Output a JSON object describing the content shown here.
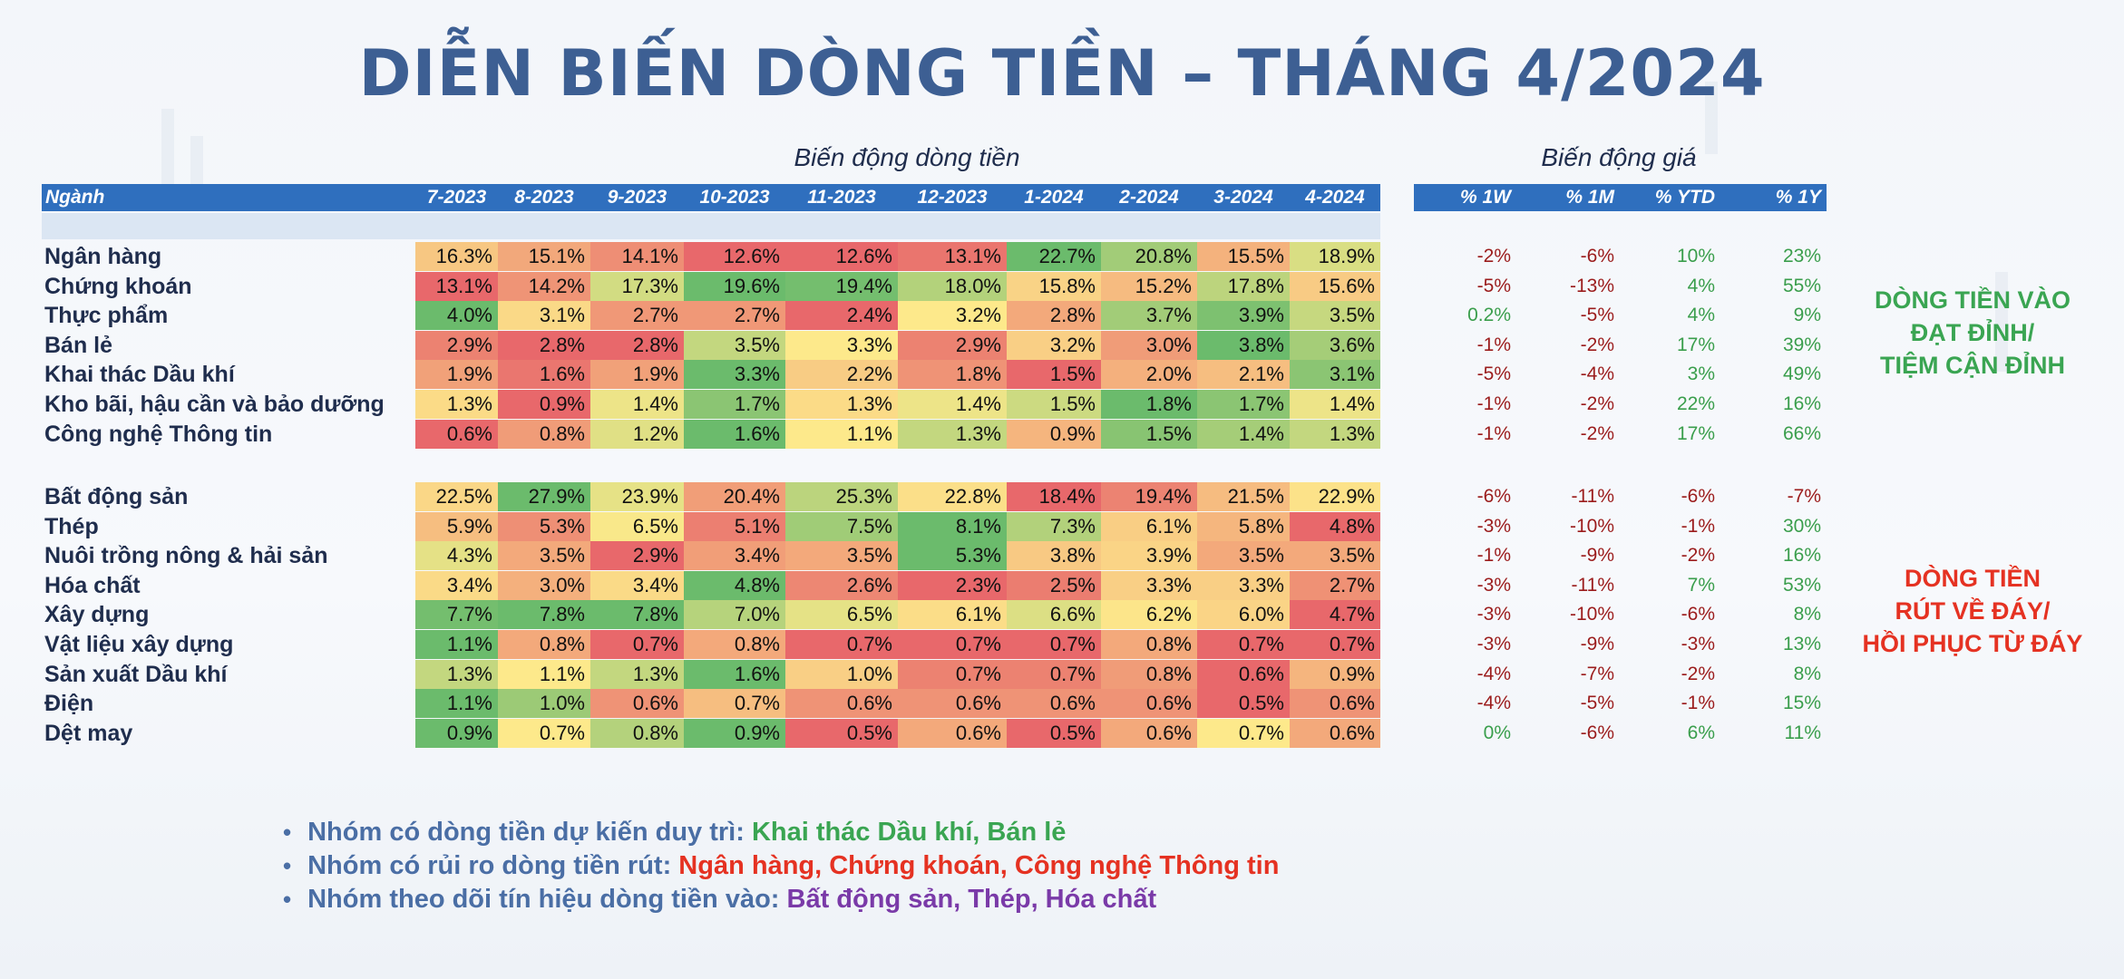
{
  "title": "DIỄN BIẾN DÒNG TIỀN – THÁNG 4/2024",
  "colors": {
    "title": "#3d5f93",
    "header_bg": "#2f6fbe",
    "heat_low": "#e8686b",
    "heat_mid": "#fde98b",
    "heat_high": "#6bbb6c",
    "green_text": "#3aa552",
    "red_text": "#e53222",
    "purple_text": "#7a3aa8",
    "bullet_lead": "#4a6ea5"
  },
  "chart_data": {
    "type": "table",
    "flow_group_label": "Biến động dòng tiền",
    "price_group_label": "Biến động giá",
    "sector_header": "Ngành",
    "months": [
      "7-2023",
      "8-2023",
      "9-2023",
      "10-2023",
      "11-2023",
      "12-2023",
      "1-2024",
      "2-2024",
      "3-2024",
      "4-2024"
    ],
    "price_headers": [
      "% 1W",
      "% 1M",
      "% YTD",
      "% 1Y"
    ],
    "groups": [
      {
        "note": [
          "DÒNG TIỀN VÀO",
          "ĐẠT ĐỈNH/",
          "TIỆM CẬN ĐỈNH"
        ],
        "note_color": "green",
        "rows": [
          {
            "sector": "Ngân hàng",
            "flow": [
              "16.3%",
              "15.1%",
              "14.1%",
              "12.6%",
              "12.6%",
              "13.1%",
              "22.7%",
              "20.8%",
              "15.5%",
              "18.9%"
            ],
            "price": [
              "-2%",
              "-6%",
              "10%",
              "23%"
            ]
          },
          {
            "sector": "Chứng khoán",
            "flow": [
              "13.1%",
              "14.2%",
              "17.3%",
              "19.6%",
              "19.4%",
              "18.0%",
              "15.8%",
              "15.2%",
              "17.8%",
              "15.6%"
            ],
            "price": [
              "-5%",
              "-13%",
              "4%",
              "55%"
            ]
          },
          {
            "sector": "Thực phẩm",
            "flow": [
              "4.0%",
              "3.1%",
              "2.7%",
              "2.7%",
              "2.4%",
              "3.2%",
              "2.8%",
              "3.7%",
              "3.9%",
              "3.5%"
            ],
            "price": [
              "0.2%",
              "-5%",
              "4%",
              "9%"
            ]
          },
          {
            "sector": "Bán lẻ",
            "flow": [
              "2.9%",
              "2.8%",
              "2.8%",
              "3.5%",
              "3.3%",
              "2.9%",
              "3.2%",
              "3.0%",
              "3.8%",
              "3.6%"
            ],
            "price": [
              "-1%",
              "-2%",
              "17%",
              "39%"
            ]
          },
          {
            "sector": "Khai thác Dầu khí",
            "flow": [
              "1.9%",
              "1.6%",
              "1.9%",
              "3.3%",
              "2.2%",
              "1.8%",
              "1.5%",
              "2.0%",
              "2.1%",
              "3.1%"
            ],
            "price": [
              "-5%",
              "-4%",
              "3%",
              "49%"
            ]
          },
          {
            "sector": "Kho bãi, hậu cần và bảo dưỡng",
            "flow": [
              "1.3%",
              "0.9%",
              "1.4%",
              "1.7%",
              "1.3%",
              "1.4%",
              "1.5%",
              "1.8%",
              "1.7%",
              "1.4%"
            ],
            "price": [
              "-1%",
              "-2%",
              "22%",
              "16%"
            ]
          },
          {
            "sector": "Công nghệ Thông tin",
            "flow": [
              "0.6%",
              "0.8%",
              "1.2%",
              "1.6%",
              "1.1%",
              "1.3%",
              "0.9%",
              "1.5%",
              "1.4%",
              "1.3%"
            ],
            "price": [
              "-1%",
              "-2%",
              "17%",
              "66%"
            ]
          }
        ]
      },
      {
        "note": [
          "DÒNG TIỀN",
          "RÚT VỀ  ĐÁY/",
          "HỒI PHỤC TỪ ĐÁY"
        ],
        "note_color": "red",
        "rows": [
          {
            "sector": "Bất động sản",
            "flow": [
              "22.5%",
              "27.9%",
              "23.9%",
              "20.4%",
              "25.3%",
              "22.8%",
              "18.4%",
              "19.4%",
              "21.5%",
              "22.9%"
            ],
            "price": [
              "-6%",
              "-11%",
              "-6%",
              "-7%"
            ]
          },
          {
            "sector": "Thép",
            "flow": [
              "5.9%",
              "5.3%",
              "6.5%",
              "5.1%",
              "7.5%",
              "8.1%",
              "7.3%",
              "6.1%",
              "5.8%",
              "4.8%"
            ],
            "price": [
              "-3%",
              "-10%",
              "-1%",
              "30%"
            ]
          },
          {
            "sector": "Nuôi trồng nông & hải sản",
            "flow": [
              "4.3%",
              "3.5%",
              "2.9%",
              "3.4%",
              "3.5%",
              "5.3%",
              "3.8%",
              "3.9%",
              "3.5%",
              "3.5%"
            ],
            "price": [
              "-1%",
              "-9%",
              "-2%",
              "16%"
            ]
          },
          {
            "sector": "Hóa chất",
            "flow": [
              "3.4%",
              "3.0%",
              "3.4%",
              "4.8%",
              "2.6%",
              "2.3%",
              "2.5%",
              "3.3%",
              "3.3%",
              "2.7%"
            ],
            "price": [
              "-3%",
              "-11%",
              "7%",
              "53%"
            ]
          },
          {
            "sector": "Xây dựng",
            "flow": [
              "7.7%",
              "7.8%",
              "7.8%",
              "7.0%",
              "6.5%",
              "6.1%",
              "6.6%",
              "6.2%",
              "6.0%",
              "4.7%"
            ],
            "price": [
              "-3%",
              "-10%",
              "-6%",
              "8%"
            ]
          },
          {
            "sector": "Vật liệu xây dựng",
            "flow": [
              "1.1%",
              "0.8%",
              "0.7%",
              "0.8%",
              "0.7%",
              "0.7%",
              "0.7%",
              "0.8%",
              "0.7%",
              "0.7%"
            ],
            "price": [
              "-3%",
              "-9%",
              "-3%",
              "13%"
            ]
          },
          {
            "sector": "Sản xuất Dầu khí",
            "flow": [
              "1.3%",
              "1.1%",
              "1.3%",
              "1.6%",
              "1.0%",
              "0.7%",
              "0.7%",
              "0.8%",
              "0.6%",
              "0.9%"
            ],
            "price": [
              "-4%",
              "-7%",
              "-2%",
              "8%"
            ]
          },
          {
            "sector": "Điện",
            "flow": [
              "1.1%",
              "1.0%",
              "0.6%",
              "0.7%",
              "0.6%",
              "0.6%",
              "0.6%",
              "0.6%",
              "0.5%",
              "0.6%"
            ],
            "price": [
              "-4%",
              "-5%",
              "-1%",
              "15%"
            ]
          },
          {
            "sector": "Dệt may",
            "flow": [
              "0.9%",
              "0.7%",
              "0.8%",
              "0.9%",
              "0.5%",
              "0.6%",
              "0.5%",
              "0.6%",
              "0.7%",
              "0.6%"
            ],
            "price": [
              "0%",
              "-6%",
              "6%",
              "11%"
            ]
          }
        ]
      }
    ]
  },
  "bullets": [
    {
      "lead": "Nhóm có dòng tiền dự kiến duy trì: ",
      "items": "Khai thác Dầu khí, Bán lẻ",
      "color": "green"
    },
    {
      "lead": "Nhóm có rủi ro dòng tiền rút: ",
      "items": "Ngân hàng, Chứng khoán, Công nghệ Thông tin",
      "color": "red"
    },
    {
      "lead": "Nhóm theo dõi tín hiệu dòng tiền vào: ",
      "items": "Bất động sản, Thép, Hóa chất",
      "color": "purple"
    }
  ]
}
